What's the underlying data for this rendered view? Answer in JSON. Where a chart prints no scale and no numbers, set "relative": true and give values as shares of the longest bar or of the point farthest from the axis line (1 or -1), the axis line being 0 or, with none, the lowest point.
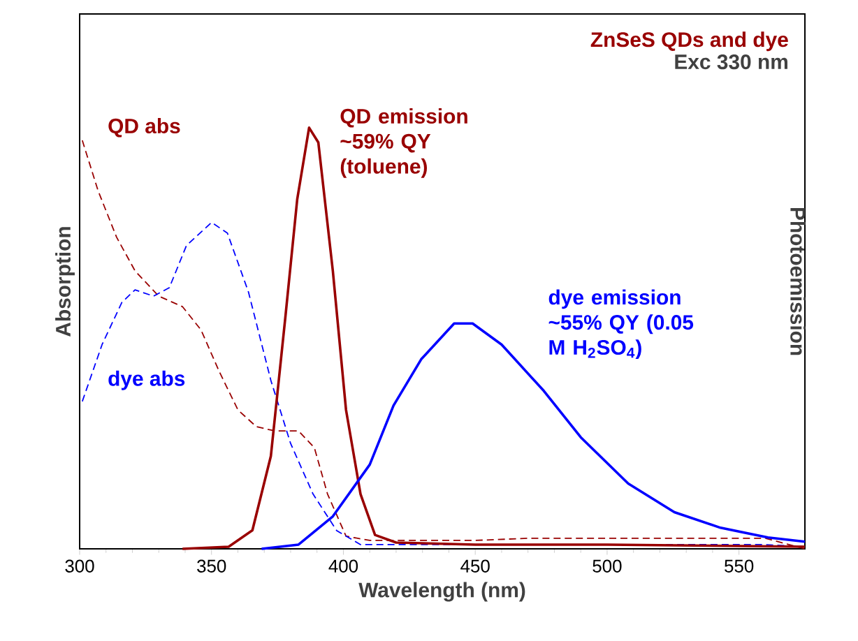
{
  "chart_data": {
    "type": "line",
    "title": "ZnSeS QDs and dye",
    "subtitle": "Exc 330 nm",
    "xlabel": "Wavelength (nm)",
    "ylabel": "Absorption",
    "y2label": "Photoemission",
    "relative": true,
    "marker": "none",
    "xlim": [
      300,
      575
    ],
    "xticks": [
      300,
      350,
      400,
      450,
      500,
      550
    ],
    "series": [
      {
        "name": "QD abs",
        "color": "#990000",
        "line_style": "dashed",
        "x": [
          301,
          307,
          314,
          321,
          330,
          339,
          346,
          353,
          360,
          367,
          374,
          383,
          389,
          394,
          401,
          410,
          450,
          470,
          520,
          560,
          575
        ],
        "values": [
          0.97,
          0.85,
          0.74,
          0.66,
          0.6,
          0.575,
          0.52,
          0.42,
          0.33,
          0.29,
          0.28,
          0.28,
          0.24,
          0.13,
          0.03,
          0.02,
          0.02,
          0.025,
          0.025,
          0.025,
          0
        ]
      },
      {
        "name": "dye abs",
        "color": "#0000ff",
        "line_style": "dashed",
        "x": [
          301,
          308.5,
          316,
          321,
          328,
          334,
          340.5,
          350,
          356,
          364,
          372.5,
          380,
          388.5,
          397.5,
          406.5,
          450,
          500,
          560,
          575
        ],
        "values": [
          0.35,
          0.485,
          0.585,
          0.615,
          0.6,
          0.62,
          0.72,
          0.775,
          0.75,
          0.61,
          0.4,
          0.25,
          0.13,
          0.043,
          0.01,
          null,
          null,
          0.01,
          0.005
        ]
      },
      {
        "name": "QD emission ~59% QY (toluene)",
        "color": "#990000",
        "line_style": "solid",
        "x": [
          339,
          356.5,
          365.5,
          372.5,
          378,
          382.5,
          387,
          390.5,
          396,
          401,
          406.5,
          412,
          420,
          450,
          500,
          575
        ],
        "values": [
          0,
          0.005,
          0.044,
          0.22,
          0.55,
          0.83,
          1.0,
          0.965,
          0.66,
          0.33,
          0.13,
          0.033,
          0.015,
          0.01,
          0.01,
          0.005
        ]
      },
      {
        "name": "dye emission ~55% QY (0.05 M H$_{2}$SO$_{4}$)",
        "color": "#0000ff",
        "line_style": "solid",
        "x": [
          369,
          383,
          396,
          410,
          419,
          429.5,
          442,
          449,
          460,
          476,
          490,
          508,
          525.5,
          543,
          561,
          575
        ],
        "values": [
          0,
          0.01,
          0.077,
          0.2,
          0.34,
          0.45,
          0.535,
          0.535,
          0.485,
          0.375,
          0.265,
          0.155,
          0.087,
          0.05,
          0.027,
          0.017
        ]
      }
    ]
  }
}
